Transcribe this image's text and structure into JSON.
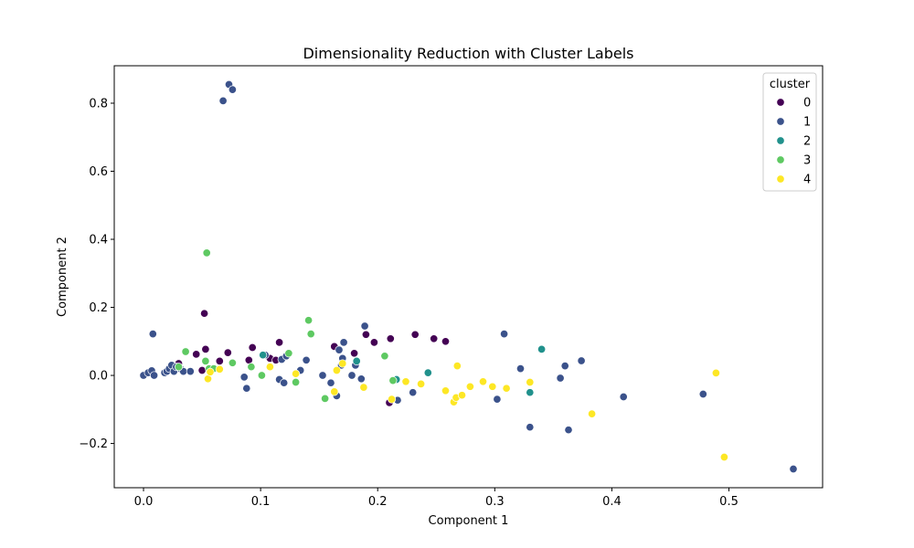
{
  "chart_data": {
    "type": "scatter",
    "title": "Dimensionality Reduction with Cluster Labels",
    "xlabel": "Component 1",
    "ylabel": "Component 2",
    "xlim": [
      -0.025,
      0.58
    ],
    "ylim": [
      -0.33,
      0.91
    ],
    "xticks": [
      0.0,
      0.1,
      0.2,
      0.3,
      0.4,
      0.5
    ],
    "xtick_labels": [
      "0.0",
      "0.1",
      "0.2",
      "0.3",
      "0.4",
      "0.5"
    ],
    "yticks": [
      -0.2,
      0.0,
      0.2,
      0.4,
      0.6,
      0.8
    ],
    "ytick_labels": [
      "−0.2",
      "0.0",
      "0.2",
      "0.4",
      "0.6",
      "0.8"
    ],
    "grid": false,
    "legend": {
      "title": "cluster",
      "position": "top-right",
      "entries": [
        "0",
        "1",
        "2",
        "3",
        "4"
      ]
    },
    "series": [
      {
        "name": "0",
        "color": "#440154",
        "points": [
          [
            0.052,
            0.182
          ],
          [
            0.053,
            0.077
          ],
          [
            0.045,
            0.062
          ],
          [
            0.072,
            0.067
          ],
          [
            0.05,
            0.015
          ],
          [
            0.065,
            0.042
          ],
          [
            0.09,
            0.045
          ],
          [
            0.093,
            0.082
          ],
          [
            0.108,
            0.05
          ],
          [
            0.113,
            0.045
          ],
          [
            0.116,
            0.097
          ],
          [
            0.163,
            0.085
          ],
          [
            0.18,
            0.065
          ],
          [
            0.19,
            0.12
          ],
          [
            0.197,
            0.097
          ],
          [
            0.211,
            0.108
          ],
          [
            0.232,
            0.12
          ],
          [
            0.248,
            0.108
          ],
          [
            0.258,
            0.1
          ],
          [
            0.21,
            -0.08
          ],
          [
            0.03,
            0.035
          ]
        ]
      },
      {
        "name": "1",
        "color": "#3b528b",
        "points": [
          [
            0.073,
            0.855
          ],
          [
            0.076,
            0.84
          ],
          [
            0.068,
            0.807
          ],
          [
            0.008,
            0.122
          ],
          [
            0.0,
            0.0
          ],
          [
            0.004,
            0.008
          ],
          [
            0.007,
            0.014
          ],
          [
            0.009,
            0.0
          ],
          [
            0.018,
            0.008
          ],
          [
            0.02,
            0.012
          ],
          [
            0.022,
            0.02
          ],
          [
            0.024,
            0.03
          ],
          [
            0.026,
            0.012
          ],
          [
            0.028,
            0.025
          ],
          [
            0.032,
            0.018
          ],
          [
            0.034,
            0.012
          ],
          [
            0.04,
            0.012
          ],
          [
            0.086,
            -0.005
          ],
          [
            0.088,
            -0.038
          ],
          [
            0.104,
            0.06
          ],
          [
            0.116,
            -0.012
          ],
          [
            0.118,
            0.047
          ],
          [
            0.12,
            -0.022
          ],
          [
            0.122,
            0.057
          ],
          [
            0.134,
            0.015
          ],
          [
            0.139,
            0.045
          ],
          [
            0.153,
            0.0
          ],
          [
            0.16,
            -0.022
          ],
          [
            0.165,
            -0.06
          ],
          [
            0.167,
            0.075
          ],
          [
            0.169,
            0.03
          ],
          [
            0.171,
            0.097
          ],
          [
            0.17,
            0.05
          ],
          [
            0.178,
            0.0
          ],
          [
            0.181,
            0.03
          ],
          [
            0.186,
            -0.01
          ],
          [
            0.189,
            0.145
          ],
          [
            0.217,
            -0.073
          ],
          [
            0.23,
            -0.05
          ],
          [
            0.302,
            -0.07
          ],
          [
            0.308,
            0.122
          ],
          [
            0.322,
            0.02
          ],
          [
            0.33,
            -0.152
          ],
          [
            0.356,
            -0.008
          ],
          [
            0.36,
            0.028
          ],
          [
            0.363,
            -0.16
          ],
          [
            0.374,
            0.043
          ],
          [
            0.41,
            -0.063
          ],
          [
            0.478,
            -0.055
          ],
          [
            0.555,
            -0.275
          ]
        ]
      },
      {
        "name": "2",
        "color": "#21918c",
        "points": [
          [
            0.102,
            0.06
          ],
          [
            0.182,
            0.042
          ],
          [
            0.216,
            -0.012
          ],
          [
            0.243,
            0.008
          ],
          [
            0.33,
            -0.05
          ],
          [
            0.34,
            0.077
          ]
        ]
      },
      {
        "name": "3",
        "color": "#5ec962",
        "points": [
          [
            0.054,
            0.36
          ],
          [
            0.141,
            0.162
          ],
          [
            0.143,
            0.122
          ],
          [
            0.036,
            0.07
          ],
          [
            0.03,
            0.025
          ],
          [
            0.053,
            0.042
          ],
          [
            0.056,
            0.02
          ],
          [
            0.06,
            0.02
          ],
          [
            0.076,
            0.037
          ],
          [
            0.092,
            0.025
          ],
          [
            0.101,
            0.0
          ],
          [
            0.124,
            0.065
          ],
          [
            0.13,
            -0.02
          ],
          [
            0.155,
            -0.068
          ],
          [
            0.206,
            0.057
          ],
          [
            0.213,
            -0.015
          ]
        ]
      },
      {
        "name": "4",
        "color": "#fde725",
        "points": [
          [
            0.055,
            -0.01
          ],
          [
            0.057,
            0.01
          ],
          [
            0.065,
            0.018
          ],
          [
            0.108,
            0.025
          ],
          [
            0.13,
            0.005
          ],
          [
            0.163,
            -0.048
          ],
          [
            0.165,
            0.015
          ],
          [
            0.17,
            0.035
          ],
          [
            0.188,
            -0.035
          ],
          [
            0.212,
            -0.07
          ],
          [
            0.224,
            -0.018
          ],
          [
            0.237,
            -0.025
          ],
          [
            0.258,
            -0.045
          ],
          [
            0.265,
            -0.078
          ],
          [
            0.267,
            -0.065
          ],
          [
            0.268,
            0.028
          ],
          [
            0.272,
            -0.058
          ],
          [
            0.279,
            -0.033
          ],
          [
            0.29,
            -0.018
          ],
          [
            0.298,
            -0.033
          ],
          [
            0.31,
            -0.038
          ],
          [
            0.33,
            -0.02
          ],
          [
            0.383,
            -0.113
          ],
          [
            0.489,
            0.007
          ],
          [
            0.496,
            -0.24
          ]
        ]
      }
    ]
  }
}
